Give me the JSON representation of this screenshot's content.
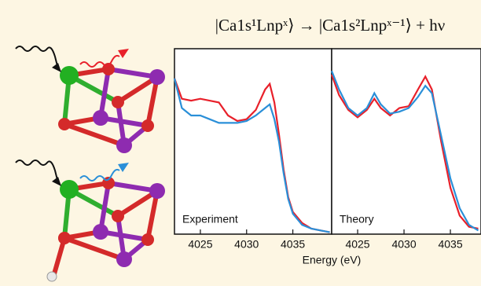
{
  "title": "|Ca1s¹Lnpˣ⟩ → |Ca1s²Lnpˣ⁻¹⟩ + hν",
  "chart_data": [
    {
      "type": "line",
      "annotation": "Experiment",
      "xlabel": "Energy (eV)",
      "x": [
        4022.2,
        4023,
        4024,
        4025,
        4026,
        4027,
        4028,
        4029,
        4030,
        4031,
        4032,
        4032.5,
        4033,
        4033.5,
        4034,
        4034.5,
        4035,
        4036,
        4037,
        4038,
        4039
      ],
      "series": [
        {
          "color": "#e8202a",
          "values": [
            0.84,
            0.73,
            0.72,
            0.73,
            0.72,
            0.71,
            0.64,
            0.61,
            0.62,
            0.67,
            0.78,
            0.81,
            0.71,
            0.54,
            0.35,
            0.2,
            0.12,
            0.06,
            0.03,
            0.02,
            0.01
          ]
        },
        {
          "color": "#2a8fd8",
          "values": [
            0.84,
            0.68,
            0.64,
            0.64,
            0.62,
            0.6,
            0.6,
            0.6,
            0.61,
            0.64,
            0.68,
            0.7,
            0.62,
            0.5,
            0.33,
            0.19,
            0.11,
            0.05,
            0.03,
            0.02,
            0.01
          ]
        }
      ],
      "xlim": [
        4022.2,
        4039.2
      ],
      "ylim": [
        0,
        1
      ],
      "xticks": [
        4025,
        4030,
        4035
      ]
    },
    {
      "type": "line",
      "annotation": "Theory",
      "x": [
        4022.2,
        4023,
        4024,
        4025,
        4026,
        4026.8,
        4027.5,
        4028.5,
        4029.5,
        4030.5,
        4031.5,
        4032.3,
        4033,
        4034,
        4035,
        4036,
        4037,
        4038
      ],
      "series": [
        {
          "color": "#e8202a",
          "values": [
            0.86,
            0.75,
            0.67,
            0.63,
            0.67,
            0.73,
            0.68,
            0.64,
            0.68,
            0.69,
            0.78,
            0.85,
            0.78,
            0.5,
            0.25,
            0.1,
            0.04,
            0.03
          ]
        },
        {
          "color": "#2a8fd8",
          "values": [
            0.88,
            0.78,
            0.68,
            0.64,
            0.68,
            0.76,
            0.7,
            0.65,
            0.66,
            0.68,
            0.74,
            0.8,
            0.76,
            0.53,
            0.3,
            0.14,
            0.05,
            0.02
          ]
        }
      ],
      "xlim": [
        4022.2,
        4038.3
      ],
      "ylim": [
        0,
        1
      ],
      "xticks": [
        4025,
        4030,
        4035
      ]
    }
  ]
}
